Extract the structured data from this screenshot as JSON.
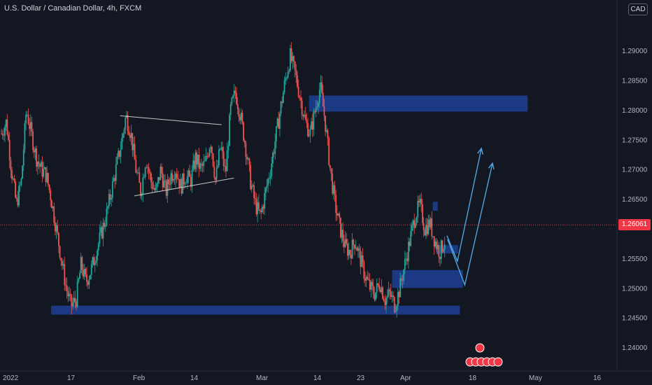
{
  "header": {
    "title": "U.S. Dollar / Canadian Dollar, 4h, FXCM",
    "currency_button": "CAD",
    "last_price": "1.26061"
  },
  "colors": {
    "background": "#131722",
    "up": "#26a69a",
    "down": "#ef5350",
    "zone": "#1e3d8f",
    "zone_light": "#2962ff",
    "projection": "#4fa3e0",
    "triangle": "#c8c8c8",
    "price_line": "#f23645"
  },
  "chart_data": {
    "type": "candlestick",
    "symbol": "USDCAD",
    "timeframe": "4h",
    "ylim": [
      1.236,
      1.2985
    ],
    "y_ticks": [
      {
        "value": 1.29,
        "label": "1.29000"
      },
      {
        "value": 1.285,
        "label": "1.28500"
      },
      {
        "value": 1.28,
        "label": "1.28000"
      },
      {
        "value": 1.275,
        "label": "1.27500"
      },
      {
        "value": 1.27,
        "label": "1.27000"
      },
      {
        "value": 1.265,
        "label": "1.26500"
      },
      {
        "value": 1.255,
        "label": "1.25500"
      },
      {
        "value": 1.25,
        "label": "1.25000"
      },
      {
        "value": 1.245,
        "label": "1.24500"
      },
      {
        "value": 1.24,
        "label": "1.24000"
      }
    ],
    "x_ticks": [
      "2022",
      "17",
      "Feb",
      "14",
      "Mar",
      "14",
      "23",
      "Apr",
      "18",
      "May",
      "16"
    ],
    "close_path": [
      1.276,
      1.278,
      1.27,
      1.264,
      1.268,
      1.28,
      1.276,
      1.272,
      1.27,
      1.269,
      1.265,
      1.26,
      1.255,
      1.25,
      1.247,
      1.248,
      1.254,
      1.251,
      1.253,
      1.256,
      1.259,
      1.262,
      1.266,
      1.27,
      1.274,
      1.279,
      1.276,
      1.27,
      1.266,
      1.272,
      1.268,
      1.266,
      1.27,
      1.266,
      1.269,
      1.27,
      1.267,
      1.269,
      1.268,
      1.272,
      1.27,
      1.271,
      1.275,
      1.268,
      1.274,
      1.269,
      1.28,
      1.283,
      1.279,
      1.274,
      1.268,
      1.264,
      1.262,
      1.266,
      1.27,
      1.275,
      1.28,
      1.285,
      1.289,
      1.286,
      1.282,
      1.278,
      1.276,
      1.28,
      1.284,
      1.278,
      1.27,
      1.264,
      1.26,
      1.257,
      1.256,
      1.258,
      1.255,
      1.252,
      1.25,
      1.249,
      1.251,
      1.248,
      1.249,
      1.247,
      1.25,
      1.254,
      1.258,
      1.262,
      1.264,
      1.26,
      1.261,
      1.258,
      1.256,
      1.258
    ],
    "zones": [
      {
        "x0": 0.502,
        "x1": 0.857,
        "y0": 1.2797,
        "y1": 1.2824
      },
      {
        "x0": 0.083,
        "x1": 0.747,
        "y0": 1.2455,
        "y1": 1.247
      },
      {
        "x0": 0.637,
        "x1": 0.752,
        "y0": 1.25,
        "y1": 1.253
      },
      {
        "x0": 0.708,
        "x1": 0.744,
        "y0": 1.2558,
        "y1": 1.2572
      },
      {
        "x0": 0.703,
        "x1": 0.711,
        "y0": 1.263,
        "y1": 1.2645
      }
    ],
    "triangle": [
      [
        [
          0.195,
          1.279
        ],
        [
          0.36,
          1.2775
        ]
      ],
      [
        [
          0.218,
          1.2655
        ],
        [
          0.38,
          1.2685
        ]
      ]
    ],
    "projections": [
      [
        [
          0.726,
          1.2588
        ],
        [
          0.743,
          1.2545
        ],
        [
          0.782,
          1.2735
        ]
      ],
      [
        [
          0.727,
          1.2582
        ],
        [
          0.755,
          1.2505
        ],
        [
          0.8,
          1.271
        ]
      ]
    ],
    "last_price": 1.26061
  }
}
